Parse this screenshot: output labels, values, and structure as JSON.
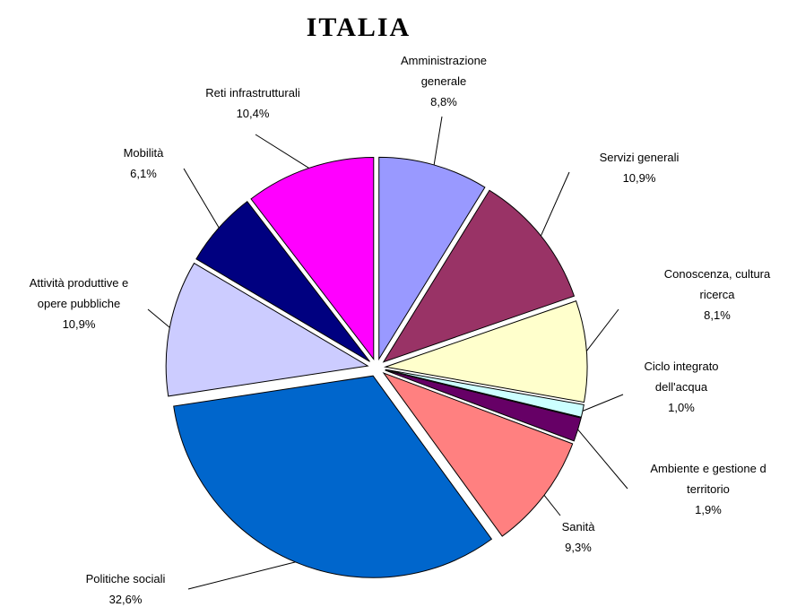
{
  "chart_data": {
    "type": "pie",
    "title": "ITALIA",
    "categories": [
      "Amministrazione\ngenerale",
      "Servizi generali",
      "Conoscenza, cultura\nricerca",
      "Ciclo integrato\ndell'acqua",
      "Ambiente e gestione d\nterritorio",
      "Sanità",
      "Politiche sociali",
      "Attività produttive e\nopere pubbliche",
      "Mobilità",
      "Reti infrastrutturali"
    ],
    "values": [
      8.8,
      10.9,
      8.1,
      1.0,
      1.9,
      9.3,
      32.6,
      10.9,
      6.1,
      10.4
    ],
    "value_labels": [
      "8,8%",
      "10,9%",
      "8,1%",
      "1,0%",
      "1,9%",
      "9,3%",
      "32,6%",
      "10,9%",
      "6,1%",
      "10,4%"
    ],
    "colors": [
      "#9999ff",
      "#993366",
      "#ffffcc",
      "#ccffff",
      "#660066",
      "#ff8080",
      "#0066cc",
      "#ccccff",
      "#000080",
      "#ff00ff"
    ]
  }
}
